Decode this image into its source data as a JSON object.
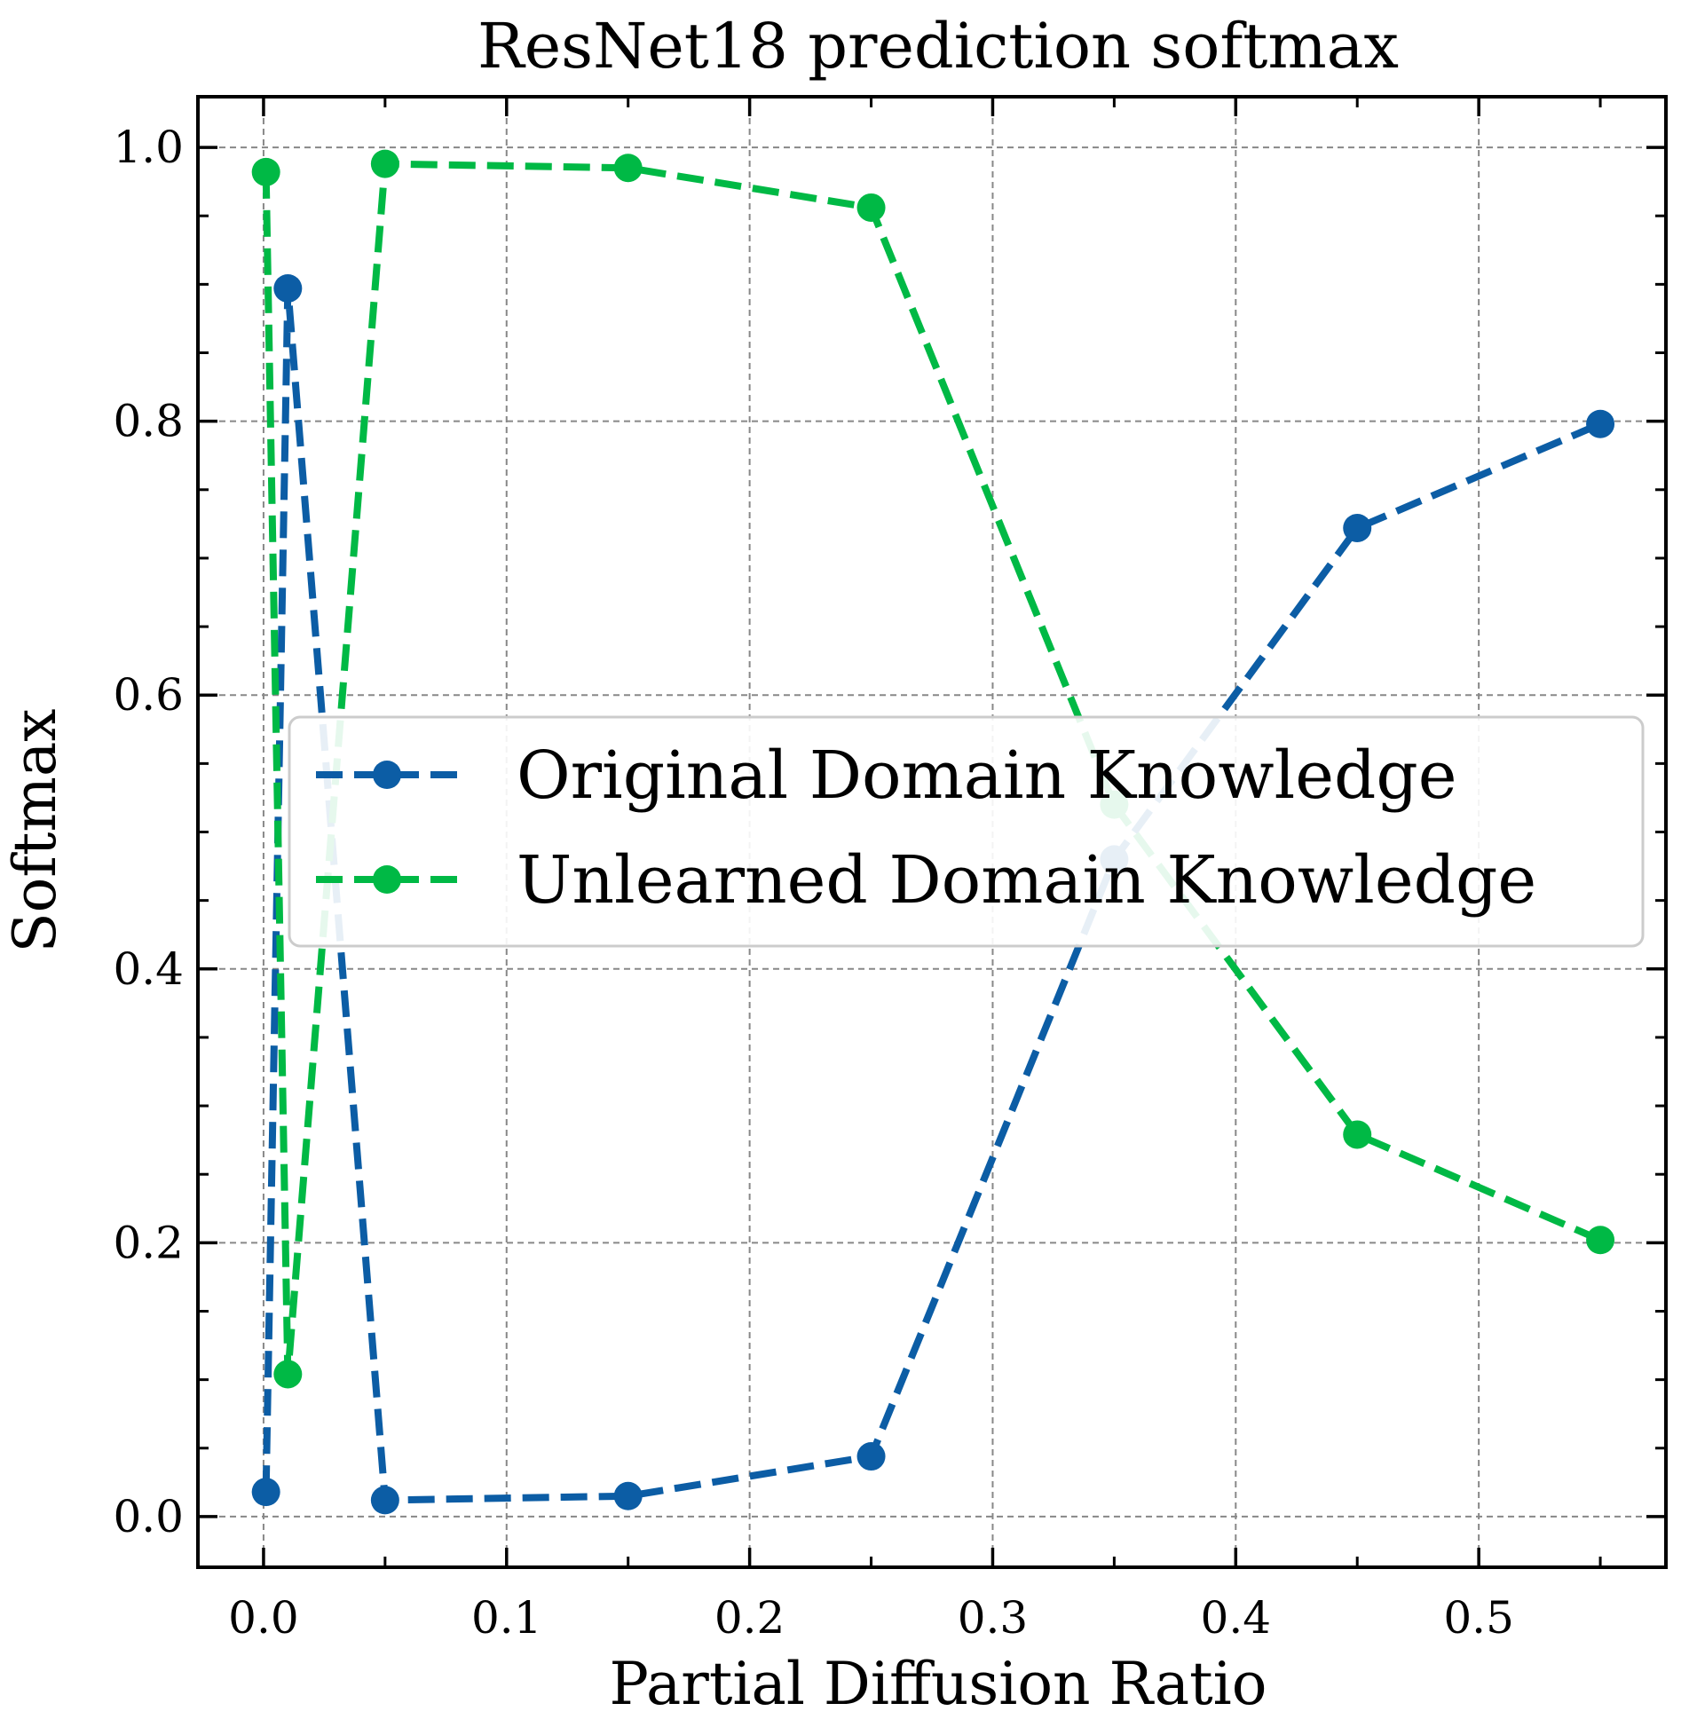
{
  "chart_data": {
    "type": "line",
    "title": "ResNet18 prediction softmax",
    "xlabel": "Partial Diffusion Ratio",
    "ylabel": "Softmax",
    "xlim": [
      -0.027,
      0.577
    ],
    "ylim": [
      -0.037,
      1.037
    ],
    "xticks": [
      0.0,
      0.1,
      0.2,
      0.3,
      0.4,
      0.5
    ],
    "xtick_labels": [
      "0.0",
      "0.1",
      "0.2",
      "0.3",
      "0.4",
      "0.5"
    ],
    "yticks": [
      0.0,
      0.2,
      0.4,
      0.6,
      0.8,
      1.0
    ],
    "ytick_labels": [
      "0.0",
      "0.2",
      "0.4",
      "0.6",
      "0.8",
      "1.0"
    ],
    "grid": true,
    "legend_position": "center-right",
    "series": [
      {
        "name": "Original Domain Knowledge",
        "color": "#0C5DA5",
        "x": [
          0.001,
          0.01,
          0.05,
          0.15,
          0.25,
          0.35,
          0.45,
          0.55
        ],
        "y": [
          0.018,
          0.897,
          0.012,
          0.015,
          0.044,
          0.48,
          0.722,
          0.798
        ]
      },
      {
        "name": "Unlearned Domain Knowledge",
        "color": "#00B945",
        "x": [
          0.001,
          0.01,
          0.05,
          0.15,
          0.25,
          0.35,
          0.45,
          0.55
        ],
        "y": [
          0.982,
          0.104,
          0.988,
          0.985,
          0.956,
          0.52,
          0.279,
          0.202
        ]
      }
    ]
  }
}
